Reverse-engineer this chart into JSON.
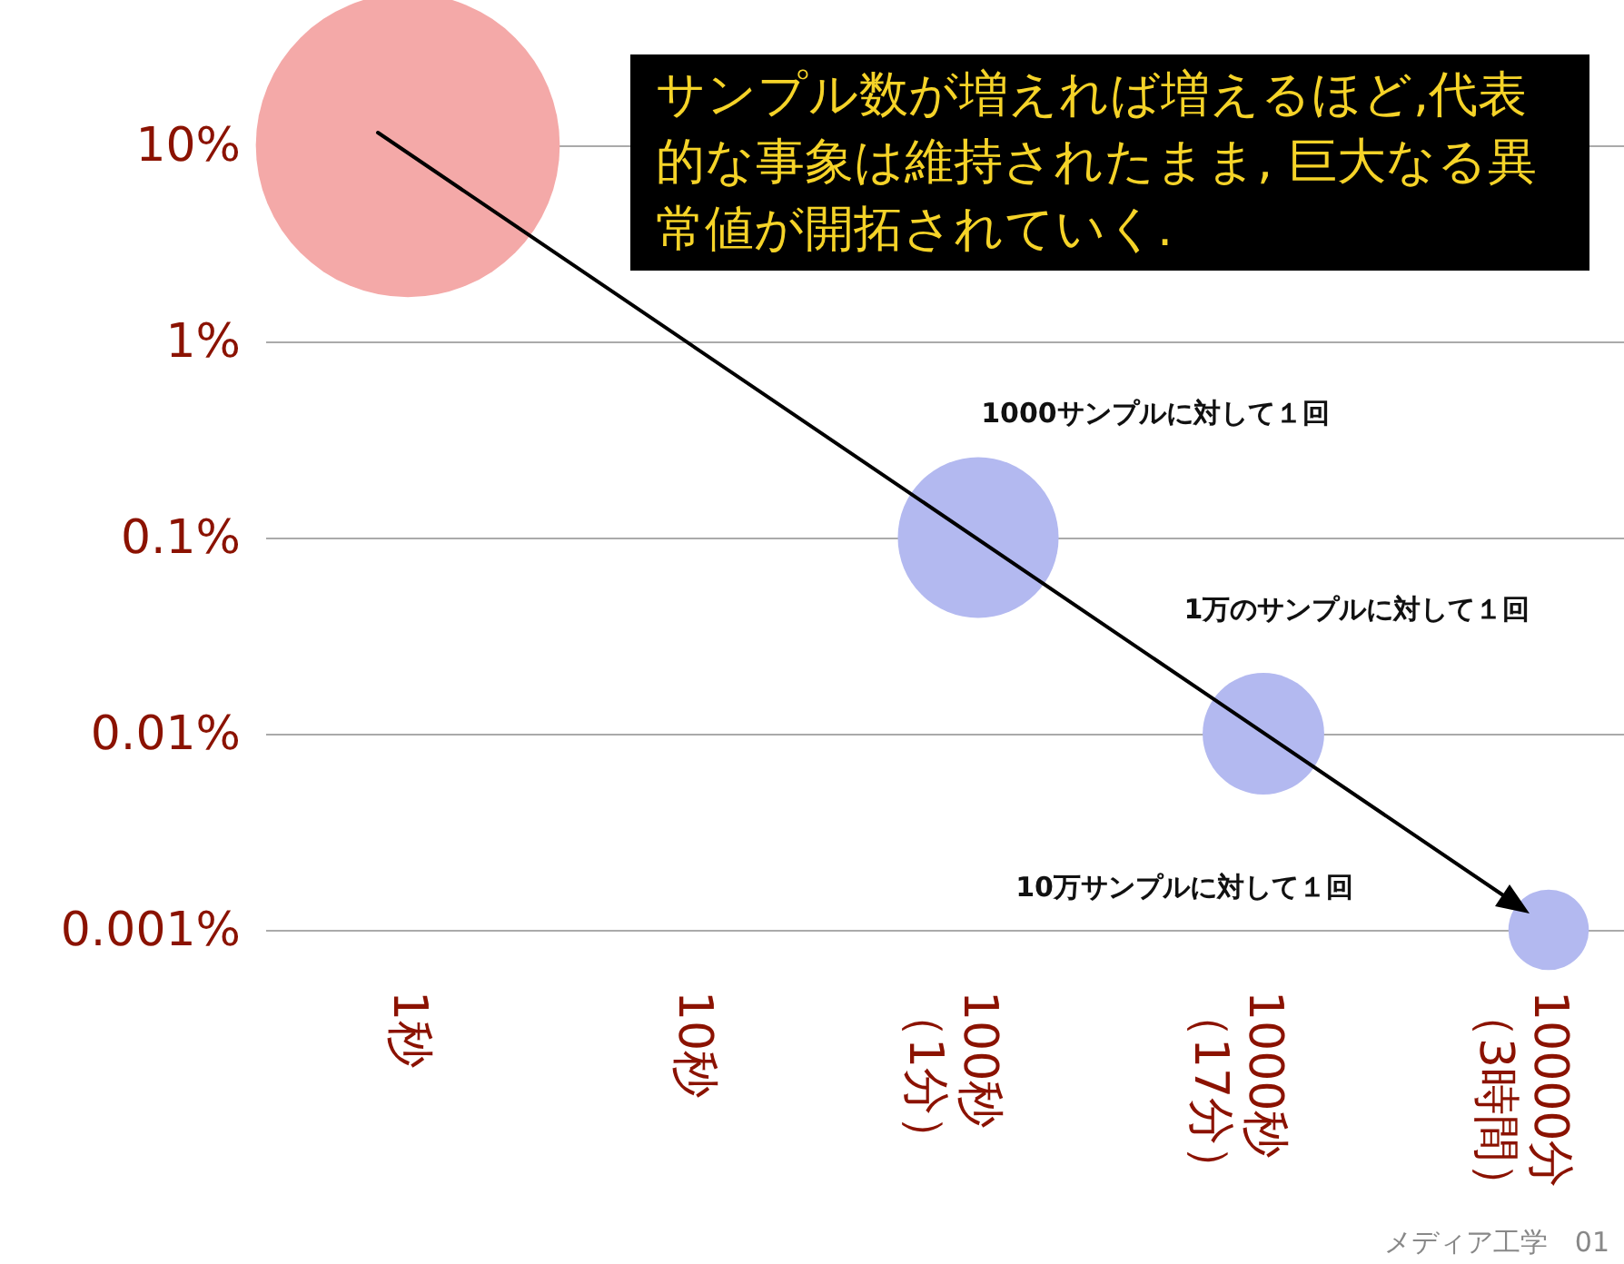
{
  "chart_data": {
    "type": "bubble",
    "categories": [
      "1秒",
      "10秒",
      "100秒（1分）",
      "1000秒（17分）",
      "10000分（3時間）"
    ],
    "series": [
      {
        "values": [
          10,
          null,
          0.1,
          0.01,
          0.001
        ],
        "sizes": [
          1,
          null,
          0.28,
          0.16,
          0.07
        ],
        "colors": [
          "#f4a9a8",
          null,
          "#b3b9f0",
          "#b3b9f0",
          "#b3b9f0"
        ]
      }
    ],
    "log": "y",
    "ylim": [
      0.001,
      10
    ],
    "yticks": [
      {
        "value": 10,
        "label": "10%"
      },
      {
        "value": 1,
        "label": "1%"
      },
      {
        "value": 0.1,
        "label": "0.1%"
      },
      {
        "value": 0.01,
        "label": "0.01%"
      },
      {
        "value": 0.001,
        "label": "0.001%"
      }
    ],
    "grid": "y",
    "annotations": [
      "サンプル数が増えれば増えるほど,代表的な事象は維持されたまま, 巨大なる異常値が開拓されていく.",
      "1000サンプルに対して１回",
      "1万のサンプルに対して１回",
      "10万サンプルに対して１回",
      "メディア工学　01"
    ]
  }
}
